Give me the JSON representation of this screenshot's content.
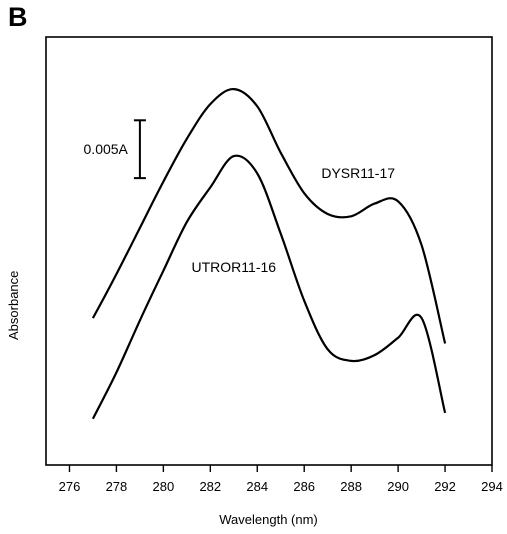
{
  "panel_label": "B",
  "chart_data": {
    "type": "line",
    "xlabel": "Wavelength (nm)",
    "ylabel": "Absorbance",
    "xlim": [
      275,
      294
    ],
    "x_ticks": [
      276,
      278,
      280,
      282,
      284,
      286,
      288,
      290,
      292,
      294
    ],
    "y_ticks": [],
    "grid": false,
    "scale_bar": {
      "label": "0.005A",
      "value": 0.005,
      "unit": "A"
    },
    "series": [
      {
        "name": "DYSR11-17",
        "x": [
          277,
          278,
          279,
          280,
          281,
          282,
          283,
          284,
          285,
          286,
          287,
          288,
          289,
          290,
          291,
          292
        ],
        "y": [
          0.0127,
          0.0165,
          0.0205,
          0.0245,
          0.0282,
          0.0312,
          0.0325,
          0.031,
          0.027,
          0.0235,
          0.0217,
          0.0215,
          0.0226,
          0.0228,
          0.019,
          0.0105
        ]
      },
      {
        "name": "UTROR11-16",
        "x": [
          277,
          278,
          279,
          280,
          281,
          282,
          283,
          284,
          285,
          286,
          287,
          288,
          289,
          290,
          291,
          292
        ],
        "y": [
          0.004,
          0.008,
          0.0125,
          0.0168,
          0.021,
          0.024,
          0.0267,
          0.0252,
          0.02,
          0.0142,
          0.01,
          0.009,
          0.0095,
          0.011,
          0.0127,
          0.0045
        ]
      }
    ]
  }
}
